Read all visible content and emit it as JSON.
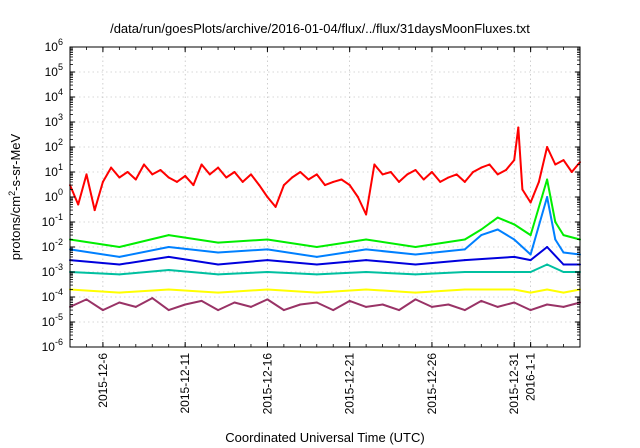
{
  "chart_data": {
    "type": "line",
    "title": "/data/run/goesPlots/archive/2016-01-04/flux/../flux/31daysMoonFluxes.txt",
    "xlabel": "Coordinated Universal Time (UTC)",
    "ylabel": "protons/cm²-s-sr-MeV",
    "yscale": "log",
    "ylim": [
      1e-06,
      1000000.0
    ],
    "xlim": [
      "2015-12-04",
      "2016-01-04"
    ],
    "grid": true,
    "y_ticks": [
      {
        "value": 1e-06,
        "base": "10",
        "exp": "-6"
      },
      {
        "value": 1e-05,
        "base": "10",
        "exp": "-5"
      },
      {
        "value": 0.0001,
        "base": "10",
        "exp": "-4"
      },
      {
        "value": 0.001,
        "base": "10",
        "exp": "-3"
      },
      {
        "value": 0.01,
        "base": "10",
        "exp": "-2"
      },
      {
        "value": 0.1,
        "base": "10",
        "exp": "-1"
      },
      {
        "value": 1,
        "base": "10",
        "exp": "0"
      },
      {
        "value": 10,
        "base": "10",
        "exp": "1"
      },
      {
        "value": 100,
        "base": "10",
        "exp": "2"
      },
      {
        "value": 1000,
        "base": "10",
        "exp": "3"
      },
      {
        "value": 10000,
        "base": "10",
        "exp": "4"
      },
      {
        "value": 100000,
        "base": "10",
        "exp": "5"
      },
      {
        "value": 1000000,
        "base": "10",
        "exp": "6"
      }
    ],
    "x_ticks": [
      {
        "label": "2015-12-6",
        "date": "2015-12-06"
      },
      {
        "label": "2015-12-11",
        "date": "2015-12-11"
      },
      {
        "label": "2015-12-16",
        "date": "2015-12-16"
      },
      {
        "label": "2015-12-21",
        "date": "2015-12-21"
      },
      {
        "label": "2015-12-26",
        "date": "2015-12-26"
      },
      {
        "label": "2015-12-31",
        "date": "2015-12-31"
      },
      {
        "label": "2016-1-1",
        "date": "2016-01-01"
      }
    ],
    "series": [
      {
        "color": "#ff0000",
        "x": [
          "2015-12-04",
          "2015-12-04T12",
          "2015-12-05",
          "2015-12-05T12",
          "2015-12-06",
          "2015-12-06T12",
          "2015-12-07",
          "2015-12-07T12",
          "2015-12-08",
          "2015-12-08T12",
          "2015-12-09",
          "2015-12-09T12",
          "2015-12-10",
          "2015-12-10T12",
          "2015-12-11",
          "2015-12-11T12",
          "2015-12-12",
          "2015-12-12T12",
          "2015-12-13",
          "2015-12-13T12",
          "2015-12-14",
          "2015-12-14T12",
          "2015-12-15",
          "2015-12-15T12",
          "2015-12-16",
          "2015-12-16T12",
          "2015-12-17",
          "2015-12-17T12",
          "2015-12-18",
          "2015-12-18T12",
          "2015-12-19",
          "2015-12-19T12",
          "2015-12-20",
          "2015-12-20T12",
          "2015-12-21",
          "2015-12-21T12",
          "2015-12-22",
          "2015-12-22T12",
          "2015-12-23",
          "2015-12-23T12",
          "2015-12-24",
          "2015-12-24T12",
          "2015-12-25",
          "2015-12-25T12",
          "2015-12-26",
          "2015-12-26T12",
          "2015-12-27",
          "2015-12-27T12",
          "2015-12-28",
          "2015-12-28T12",
          "2015-12-29",
          "2015-12-29T12",
          "2015-12-30",
          "2015-12-30T12",
          "2015-12-31",
          "2015-12-31T06",
          "2015-12-31T12",
          "2016-01-01",
          "2016-01-01T12",
          "2016-01-02",
          "2016-01-02T12",
          "2016-01-03",
          "2016-01-03T12",
          "2016-01-04"
        ],
        "values": [
          3,
          0.5,
          8,
          0.3,
          4,
          15,
          6,
          10,
          5,
          20,
          8,
          12,
          6,
          4,
          7,
          3,
          20,
          8,
          15,
          6,
          10,
          4,
          8,
          3,
          1,
          0.4,
          3,
          6,
          10,
          5,
          8,
          3,
          4,
          5,
          3,
          1,
          0.2,
          20,
          8,
          10,
          4,
          8,
          12,
          5,
          10,
          4,
          6,
          8,
          4,
          10,
          15,
          20,
          8,
          12,
          30,
          600,
          2,
          0.6,
          4,
          100,
          20,
          30,
          10,
          25
        ]
      },
      {
        "color": "#00ee00",
        "x": [
          "2015-12-04",
          "2015-12-07",
          "2015-12-10",
          "2015-12-13",
          "2015-12-16",
          "2015-12-19",
          "2015-12-22",
          "2015-12-25",
          "2015-12-28",
          "2015-12-29",
          "2015-12-30",
          "2015-12-31",
          "2016-01-01",
          "2016-01-02",
          "2016-01-02T12",
          "2016-01-03",
          "2016-01-04"
        ],
        "values": [
          0.02,
          0.01,
          0.03,
          0.015,
          0.02,
          0.01,
          0.02,
          0.01,
          0.02,
          0.05,
          0.15,
          0.08,
          0.03,
          5,
          0.1,
          0.03,
          0.02
        ]
      },
      {
        "color": "#0080ff",
        "x": [
          "2015-12-04",
          "2015-12-07",
          "2015-12-10",
          "2015-12-13",
          "2015-12-16",
          "2015-12-19",
          "2015-12-22",
          "2015-12-25",
          "2015-12-28",
          "2015-12-29",
          "2015-12-30",
          "2015-12-31",
          "2016-01-01",
          "2016-01-02",
          "2016-01-02T12",
          "2016-01-03",
          "2016-01-04"
        ],
        "values": [
          0.008,
          0.004,
          0.01,
          0.006,
          0.008,
          0.004,
          0.008,
          0.005,
          0.008,
          0.03,
          0.05,
          0.02,
          0.005,
          1,
          0.02,
          0.006,
          0.005
        ]
      },
      {
        "color": "#0000dd",
        "x": [
          "2015-12-04",
          "2015-12-07",
          "2015-12-10",
          "2015-12-13",
          "2015-12-16",
          "2015-12-19",
          "2015-12-22",
          "2015-12-25",
          "2015-12-28",
          "2015-12-31",
          "2016-01-01",
          "2016-01-02",
          "2016-01-03",
          "2016-01-04"
        ],
        "values": [
          0.003,
          0.002,
          0.004,
          0.002,
          0.003,
          0.002,
          0.003,
          0.002,
          0.003,
          0.004,
          0.003,
          0.01,
          0.002,
          0.002
        ]
      },
      {
        "color": "#00c0a0",
        "x": [
          "2015-12-04",
          "2015-12-07",
          "2015-12-10",
          "2015-12-13",
          "2015-12-16",
          "2015-12-19",
          "2015-12-22",
          "2015-12-25",
          "2015-12-28",
          "2015-12-31",
          "2016-01-01",
          "2016-01-02",
          "2016-01-03",
          "2016-01-04"
        ],
        "values": [
          0.001,
          0.0008,
          0.0012,
          0.0008,
          0.001,
          0.0008,
          0.001,
          0.0008,
          0.001,
          0.001,
          0.001,
          0.002,
          0.001,
          0.001
        ]
      },
      {
        "color": "#ffff00",
        "x": [
          "2015-12-04",
          "2015-12-07",
          "2015-12-10",
          "2015-12-13",
          "2015-12-16",
          "2015-12-19",
          "2015-12-22",
          "2015-12-25",
          "2015-12-28",
          "2015-12-31",
          "2016-01-01",
          "2016-01-02",
          "2016-01-03",
          "2016-01-04"
        ],
        "values": [
          0.0002,
          0.00015,
          0.0002,
          0.00015,
          0.0002,
          0.00015,
          0.0002,
          0.00015,
          0.0002,
          0.0002,
          0.00015,
          0.0002,
          0.00015,
          0.0002
        ]
      },
      {
        "color": "#993366",
        "x": [
          "2015-12-04",
          "2015-12-05",
          "2015-12-06",
          "2015-12-07",
          "2015-12-08",
          "2015-12-09",
          "2015-12-10",
          "2015-12-11",
          "2015-12-12",
          "2015-12-13",
          "2015-12-14",
          "2015-12-15",
          "2015-12-16",
          "2015-12-17",
          "2015-12-18",
          "2015-12-19",
          "2015-12-20",
          "2015-12-21",
          "2015-12-22",
          "2015-12-23",
          "2015-12-24",
          "2015-12-25",
          "2015-12-26",
          "2015-12-27",
          "2015-12-28",
          "2015-12-29",
          "2015-12-30",
          "2015-12-31",
          "2016-01-01",
          "2016-01-02",
          "2016-01-03",
          "2016-01-04"
        ],
        "values": [
          4e-05,
          8e-05,
          3e-05,
          6e-05,
          4e-05,
          9e-05,
          3e-05,
          5e-05,
          7e-05,
          3e-05,
          6e-05,
          4e-05,
          8e-05,
          3e-05,
          5e-05,
          6e-05,
          3e-05,
          7e-05,
          4e-05,
          5e-05,
          3e-05,
          8e-05,
          4e-05,
          5e-05,
          3e-05,
          7e-05,
          4e-05,
          6e-05,
          3e-05,
          5e-05,
          4e-05,
          6e-05
        ]
      }
    ]
  }
}
